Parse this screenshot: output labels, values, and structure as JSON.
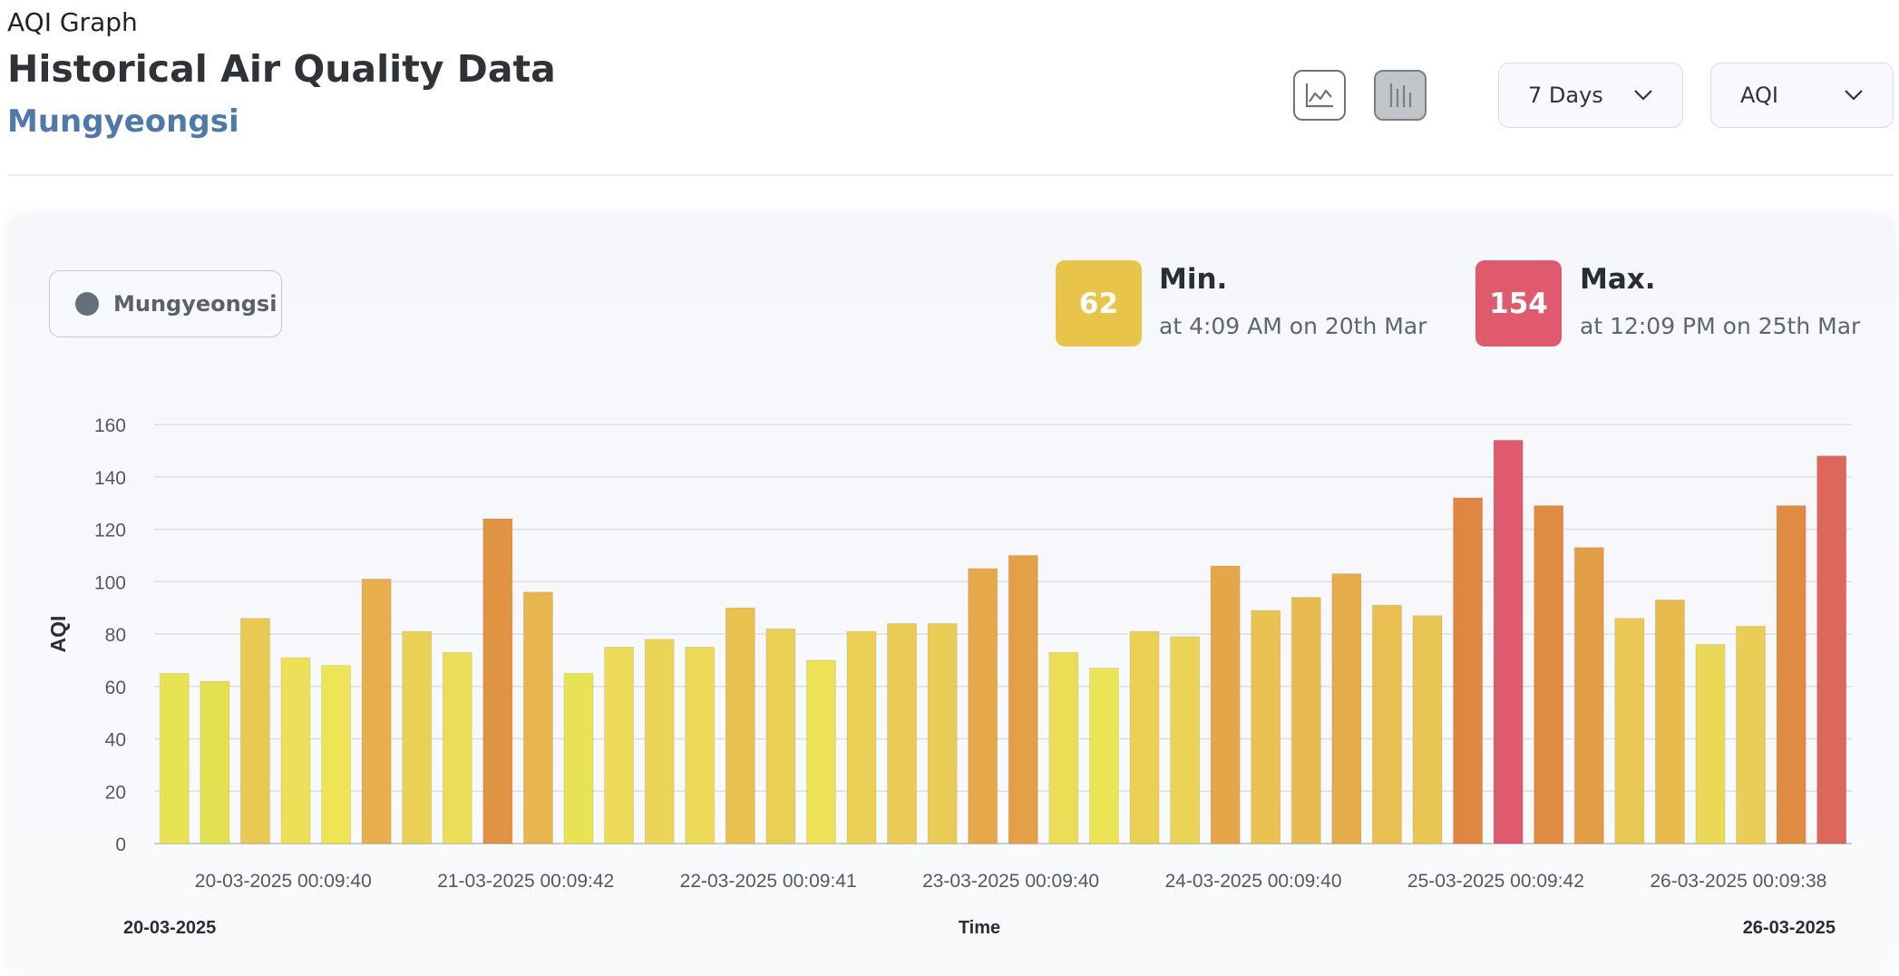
{
  "header": {
    "label": "AQI Graph",
    "title": "Historical Air Quality Data",
    "location": "Mungyeongsi"
  },
  "controls": {
    "period": "7 Days",
    "metric": "AQI",
    "line_icon": "line-chart-icon",
    "bar_icon": "bar-chart-icon",
    "chevron_icon": "chevron-down-icon"
  },
  "legend": {
    "label": "Mungyeongsi",
    "color": "#66707a"
  },
  "stats": {
    "min": {
      "value": "62",
      "label": "Min.",
      "detail": "at 4:09 AM on 20th Mar",
      "color": "#e8c54a"
    },
    "max": {
      "value": "154",
      "label": "Max.",
      "detail": "at 12:09 PM on 25th Mar",
      "color": "#e05a6e"
    }
  },
  "chart_data": {
    "type": "bar",
    "ylabel": "AQI",
    "xlabel": "Time",
    "ylim": [
      0,
      160
    ],
    "yticks": [
      0,
      20,
      40,
      60,
      80,
      100,
      120,
      140,
      160
    ],
    "grid": true,
    "x_tick_labels": [
      "20-03-2025 00:09:40",
      "21-03-2025 00:09:42",
      "22-03-2025 00:09:41",
      "23-03-2025 00:09:40",
      "24-03-2025 00:09:40",
      "25-03-2025 00:09:42",
      "26-03-2025 00:09:38"
    ],
    "x_start_label": "20-03-2025",
    "x_end_label": "26-03-2025",
    "series": [
      {
        "values": [
          65,
          62,
          86,
          71,
          68,
          101,
          81,
          73,
          124,
          96,
          65,
          75,
          78,
          75,
          90,
          82,
          70,
          81,
          84,
          84,
          105,
          110,
          73,
          67,
          81,
          79,
          106,
          89,
          94,
          103,
          91,
          87,
          132,
          154,
          129,
          113,
          86,
          93,
          76,
          83,
          129,
          148
        ]
      }
    ]
  }
}
